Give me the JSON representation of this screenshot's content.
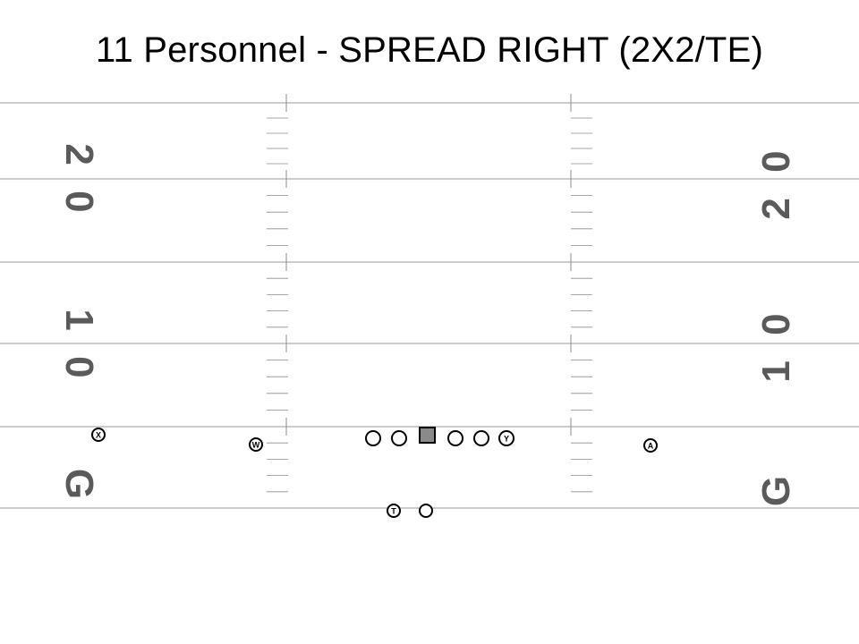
{
  "title": "11 Personnel - SPREAD RIGHT (2X2/TE)",
  "colors": {
    "yard_line": "#9a9a9a",
    "hash": "#8c8c8c",
    "number": "#5a5a5a",
    "center_fill": "#8a8a8a",
    "player_stroke": "#000000"
  },
  "field": {
    "left_numbers": [
      "2 0",
      "1 0",
      "G"
    ],
    "right_numbers": [
      "2 0",
      "1 0",
      "G"
    ]
  },
  "players": {
    "x": {
      "label": "X",
      "role": "wide receiver left"
    },
    "w": {
      "label": "W",
      "role": "slot receiver left"
    },
    "lt": {
      "label": "",
      "role": "left tackle"
    },
    "lg": {
      "label": "",
      "role": "left guard"
    },
    "c": {
      "label": "",
      "role": "center"
    },
    "rg": {
      "label": "",
      "role": "right guard"
    },
    "rt": {
      "label": "",
      "role": "right tackle"
    },
    "y": {
      "label": "Y",
      "role": "tight end"
    },
    "a": {
      "label": "A",
      "role": "wide receiver right"
    },
    "t": {
      "label": "T",
      "role": "running back"
    },
    "qb": {
      "label": "",
      "role": "quarterback"
    }
  }
}
